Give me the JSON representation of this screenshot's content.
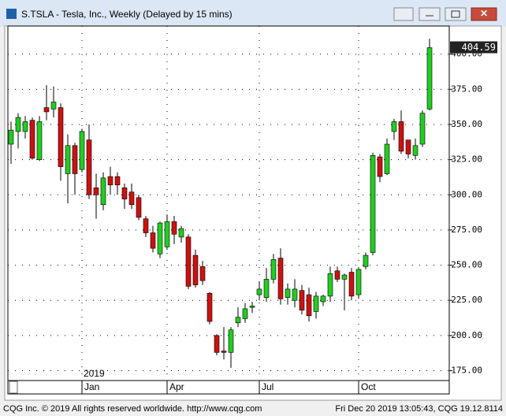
{
  "window_title": "S.TSLA - Tesla, Inc., Weekly (Delayed by 15 mins)",
  "chart_data": {
    "type": "candlestick",
    "categories": [
      null,
      null,
      null,
      null,
      null,
      null,
      null,
      null,
      null,
      null,
      "Jan",
      null,
      null,
      null,
      null,
      null,
      null,
      null,
      null,
      null,
      null,
      null,
      "Apr",
      null,
      null,
      null,
      null,
      null,
      null,
      null,
      null,
      null,
      null,
      null,
      null,
      "Jul",
      null,
      null,
      null,
      null,
      null,
      null,
      null,
      null,
      null,
      null,
      null,
      null,
      null,
      "Oct",
      null,
      null,
      null,
      null,
      null,
      null,
      null,
      null,
      null,
      null
    ],
    "year_label": "2019",
    "open": [
      336,
      345,
      345,
      353,
      325,
      362,
      361,
      362,
      315,
      335,
      318,
      339,
      305,
      293,
      313,
      313,
      305,
      302,
      298,
      283,
      273,
      258,
      263,
      281,
      270,
      270,
      257,
      249,
      230,
      200,
      189,
      188,
      209,
      212,
      220,
      229,
      227,
      240,
      255,
      227,
      225,
      232,
      229,
      217,
      224,
      228,
      246,
      240,
      245,
      229,
      249,
      259,
      327,
      315,
      345,
      352,
      339,
      328,
      336,
      361
    ],
    "high": [
      352,
      358,
      356,
      355,
      356,
      378,
      377,
      365,
      343,
      337,
      347,
      350,
      315,
      316,
      320,
      316,
      308,
      308,
      300,
      285,
      278,
      281,
      286,
      285,
      278,
      272,
      261,
      253,
      231,
      201,
      206,
      206,
      220,
      223,
      224,
      238,
      248,
      258,
      262,
      237,
      240,
      236,
      234,
      231,
      229,
      249,
      249,
      244,
      248,
      248,
      259,
      330,
      329,
      340,
      354,
      360,
      339,
      340,
      360,
      411
    ],
    "low": [
      322,
      333,
      340,
      325,
      324,
      353,
      355,
      310,
      294,
      300,
      316,
      297,
      283,
      289,
      300,
      300,
      290,
      290,
      282,
      270,
      259,
      255,
      261,
      265,
      266,
      233,
      234,
      236,
      208,
      186,
      183,
      177,
      206,
      209,
      216,
      225,
      224,
      237,
      222,
      222,
      220,
      215,
      210,
      212,
      221,
      224,
      238,
      218,
      225,
      226,
      247,
      257,
      309,
      314,
      339,
      329,
      326,
      325,
      334,
      360
    ],
    "close": [
      346,
      355,
      352,
      326,
      352,
      359,
      366,
      320,
      335,
      315,
      345,
      300,
      300,
      312,
      307,
      307,
      297,
      293,
      284,
      273,
      262,
      280,
      281,
      272,
      276,
      235,
      236,
      239,
      210,
      188,
      188,
      204,
      213,
      219,
      221,
      233,
      240,
      254,
      226,
      233,
      233,
      218,
      214,
      228,
      228,
      244,
      240,
      243,
      228,
      247,
      257,
      328,
      313,
      336,
      352,
      331,
      329,
      335,
      358,
      404.59
    ],
    "up_color": "#22cc22",
    "down_color": "#cc1111",
    "ylim": [
      168,
      420
    ],
    "yticks": [
      {
        "value": 175,
        "label": "175.00"
      },
      {
        "value": 200,
        "label": "200.00"
      },
      {
        "value": 225,
        "label": "225.00"
      },
      {
        "value": 250,
        "label": "250.00"
      },
      {
        "value": 275,
        "label": "275.00"
      },
      {
        "value": 300,
        "label": "300.00"
      },
      {
        "value": 325,
        "label": "325.00"
      },
      {
        "value": 350,
        "label": "350.00"
      },
      {
        "value": 375,
        "label": "375.00"
      },
      {
        "value": 400,
        "label": "400.00"
      }
    ],
    "grid": true
  },
  "footer": {
    "left": "CQG Inc. © 2019 All rights reserved worldwide. http://www.cqg.com",
    "right": "Fri Dec 20 2019 13:05:43, CQG 19.12.8114"
  }
}
